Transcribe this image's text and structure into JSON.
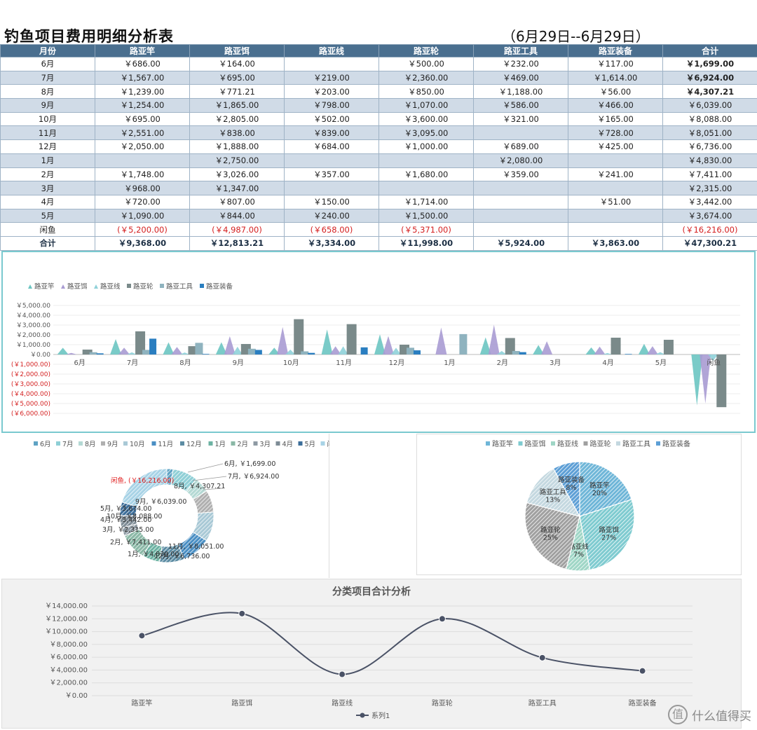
{
  "title": "钓鱼项目费用明细分析表",
  "date_range": "（6月29日--6月29日）",
  "table": {
    "headers": [
      "月份",
      "路亚竿",
      "路亚饵",
      "路亚线",
      "路亚轮",
      "路亚工具",
      "路亚装备",
      "合计"
    ],
    "rows": [
      [
        "6月",
        "￥686.00",
        "￥164.00",
        "",
        "￥500.00",
        "￥232.00",
        "￥117.00",
        "￥1,699.00"
      ],
      [
        "7月",
        "￥1,567.00",
        "￥695.00",
        "￥219.00",
        "￥2,360.00",
        "￥469.00",
        "￥1,614.00",
        "￥6,924.00"
      ],
      [
        "8月",
        "￥1,239.00",
        "￥771.21",
        "￥203.00",
        "￥850.00",
        "￥1,188.00",
        "￥56.00",
        "￥4,307.21"
      ],
      [
        "9月",
        "￥1,254.00",
        "￥1,865.00",
        "￥798.00",
        "￥1,070.00",
        "￥586.00",
        "￥466.00",
        "￥6,039.00"
      ],
      [
        "10月",
        "￥695.00",
        "￥2,805.00",
        "￥502.00",
        "￥3,600.00",
        "￥321.00",
        "￥165.00",
        "￥8,088.00"
      ],
      [
        "11月",
        "￥2,551.00",
        "￥838.00",
        "￥839.00",
        "￥3,095.00",
        "",
        "￥728.00",
        "￥8,051.00"
      ],
      [
        "12月",
        "￥2,050.00",
        "￥1,888.00",
        "￥684.00",
        "￥1,000.00",
        "￥689.00",
        "￥425.00",
        "￥6,736.00"
      ],
      [
        "1月",
        "",
        "￥2,750.00",
        "",
        "",
        "￥2,080.00",
        "",
        "￥4,830.00"
      ],
      [
        "2月",
        "￥1,748.00",
        "￥3,026.00",
        "￥357.00",
        "￥1,680.00",
        "￥359.00",
        "￥241.00",
        "￥7,411.00"
      ],
      [
        "3月",
        "￥968.00",
        "￥1,347.00",
        "",
        "",
        "",
        "",
        "￥2,315.00"
      ],
      [
        "4月",
        "￥720.00",
        "￥807.00",
        "￥150.00",
        "￥1,714.00",
        "",
        "￥51.00",
        "￥3,442.00"
      ],
      [
        "5月",
        "￥1,090.00",
        "￥844.00",
        "￥240.00",
        "￥1,500.00",
        "",
        "",
        "￥3,674.00"
      ],
      [
        "闲鱼",
        "(￥5,200.00)",
        "(￥4,987.00)",
        "(￥658.00)",
        "(￥5,371.00)",
        "",
        "",
        "(￥16,216.00)"
      ]
    ],
    "total_row": [
      "合计",
      "￥9,368.00",
      "￥12,813.21",
      "￥3,334.00",
      "￥11,998.00",
      "￥5,924.00",
      "￥3,863.00",
      "￥47,300.21"
    ]
  },
  "chart_data": [
    {
      "type": "bar",
      "title": "",
      "legend_position": "top-left",
      "categories": [
        "6月",
        "7月",
        "8月",
        "9月",
        "10月",
        "11月",
        "12月",
        "1月",
        "2月",
        "3月",
        "4月",
        "5月",
        "闲鱼"
      ],
      "y_tick_labels": [
        "￥5,000.00",
        "￥4,000.00",
        "￥3,000.00",
        "￥2,000.00",
        "￥1,000.00",
        "￥0.00",
        "(￥1,000.00)",
        "(￥2,000.00)",
        "(￥3,000.00)",
        "(￥4,000.00)",
        "(￥5,000.00)",
        "(￥6,000.00)"
      ],
      "ylim": [
        -6000,
        5000
      ],
      "series": [
        {
          "name": "路亚竿",
          "shape": "triangle",
          "color": "#6cc5c2",
          "values": [
            686,
            1567,
            1239,
            1254,
            695,
            2551,
            2050,
            0,
            1748,
            968,
            720,
            1090,
            -5200
          ]
        },
        {
          "name": "路亚饵",
          "shape": "triangle",
          "color": "#a99bd3",
          "values": [
            164,
            695,
            771.21,
            1865,
            2805,
            838,
            1888,
            2750,
            3026,
            1347,
            807,
            844,
            -4987
          ]
        },
        {
          "name": "路亚线",
          "shape": "triangle",
          "color": "#8fd1d9",
          "values": [
            0,
            219,
            203,
            798,
            502,
            839,
            684,
            0,
            357,
            0,
            150,
            240,
            -658
          ]
        },
        {
          "name": "路亚轮",
          "shape": "bar",
          "color": "#7a8a8a",
          "values": [
            500,
            2360,
            850,
            1070,
            3600,
            3095,
            1000,
            0,
            1680,
            0,
            1714,
            1500,
            -5371
          ]
        },
        {
          "name": "路亚工具",
          "shape": "bar",
          "color": "#8fb3bf",
          "values": [
            232,
            469,
            1188,
            586,
            321,
            0,
            689,
            2080,
            359,
            0,
            0,
            0,
            0
          ]
        },
        {
          "name": "路亚装备",
          "shape": "bar",
          "color": "#2a7ec0",
          "values": [
            117,
            1614,
            56,
            466,
            165,
            728,
            425,
            0,
            241,
            0,
            51,
            0,
            0
          ]
        }
      ]
    },
    {
      "type": "pie",
      "variant": "donut",
      "legend_position": "top",
      "categories": [
        "6月",
        "7月",
        "8月",
        "9月",
        "10月",
        "11月",
        "12月",
        "1月",
        "2月",
        "3月",
        "4月",
        "5月",
        "闲鱼"
      ],
      "values": [
        1699,
        6924,
        4307.21,
        6039,
        8088,
        8051,
        6736,
        4830,
        7411,
        2315,
        3442,
        3674,
        -16216
      ],
      "data_labels": [
        "6月, ￥1,699.00",
        "7月, ￥6,924.00",
        "8月, ￥4,307.21",
        "9月, ￥6,039.00",
        "10月, ￥8,088.00",
        "11月, ￥8,051.00",
        "12月, ￥6,736.00",
        "1月, ￥4,830.00",
        "2月, ￥7,411.00",
        "3月, ￥2,315.00",
        "4月, ￥3,442.00",
        "5月, ￥3,674.00",
        "闲鱼, (￥16,216.00)"
      ],
      "colors": [
        "#5fa3c4",
        "#8fcfd6",
        "#b4d9d4",
        "#b0b0b0",
        "#a9c9d6",
        "#4a8fc4",
        "#5c8ca3",
        "#6db3a3",
        "#8ab8a6",
        "#8e9aa3",
        "#7e8c96",
        "#3c6e9a",
        "#a8d3e6"
      ]
    },
    {
      "type": "pie",
      "legend_position": "top",
      "categories": [
        "路亚竿",
        "路亚饵",
        "路亚线",
        "路亚轮",
        "路亚工具",
        "路亚装备"
      ],
      "values": [
        20,
        27,
        7,
        25,
        13,
        8
      ],
      "data_labels": [
        "路亚竿\n20%",
        "路亚饵\n27%",
        "路亚线\n7%",
        "路亚轮\n25%",
        "路亚工具\n13%",
        "路亚装备\n8%"
      ],
      "colors": [
        "#6fb6d8",
        "#7fcbd0",
        "#9fd6c6",
        "#a0a0a0",
        "#c4d8e0",
        "#5d9fd6"
      ]
    },
    {
      "type": "line",
      "title": "分类项目合计分析",
      "categories": [
        "路亚竿",
        "路亚饵",
        "路亚线",
        "路亚轮",
        "路亚工具",
        "路亚装备"
      ],
      "y_tick_labels": [
        "￥14,000.00",
        "￥12,000.00",
        "￥10,000.00",
        "￥8,000.00",
        "￥6,000.00",
        "￥4,000.00",
        "￥2,000.00",
        "￥0.00"
      ],
      "ylim": [
        0,
        14000
      ],
      "series": [
        {
          "name": "系列1",
          "color": "#4a5266",
          "values": [
            9368,
            12813.21,
            3334,
            11998,
            5924,
            3863
          ]
        }
      ]
    }
  ],
  "watermark": {
    "logo": "值",
    "text": "什么值得买"
  }
}
